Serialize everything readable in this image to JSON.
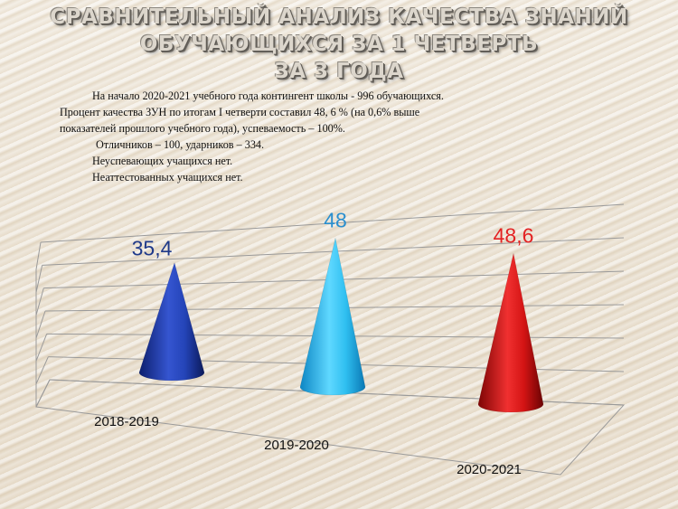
{
  "title_lines": [
    "СРАВНИТЕЛЬНЫЙ АНАЛИЗ КАЧЕСТВА ЗНАНИЙ",
    "ОБУЧАЮЩИХСЯ ЗА 1 ЧЕТВЕРТЬ",
    "ЗА 3 ГОДА"
  ],
  "description": [
    "На начало 2020-2021 учебного года  контингент школы -  996 обучающихся.",
    "Процент  качества ЗУН по итогам I  четверти составил  48, 6 % (на 0,6% выше",
    "показателей  прошлого учебного года), успеваемость  – 100%.",
    " Отличников  – 100, ударников  – 334.",
    "Неуспевающих  учащихся   нет.",
    "Неаттестованных  учащихся  нет."
  ],
  "chart_data": {
    "type": "bar",
    "style": "3d-cone",
    "categories": [
      "2018-2019",
      "2019-2020",
      "2020-2021"
    ],
    "values": [
      35.4,
      48,
      48.6
    ],
    "value_labels": [
      "35,4",
      "48",
      "48,6"
    ],
    "colors": [
      "#1f3fae",
      "#22b4ea",
      "#d01010"
    ],
    "label_colors": [
      "#1f3a8a",
      "#2a8fcf",
      "#e32222"
    ],
    "title": "",
    "xlabel": "",
    "ylabel": "",
    "ylim": [
      0,
      60
    ],
    "grid": true,
    "legend": "none"
  }
}
